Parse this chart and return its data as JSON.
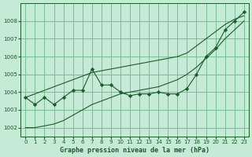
{
  "xlabel": "Graphe pression niveau de la mer (hPa)",
  "xlim": [
    -0.5,
    23.5
  ],
  "ylim": [
    1001.5,
    1009.0
  ],
  "yticks": [
    1002,
    1003,
    1004,
    1005,
    1006,
    1007,
    1008
  ],
  "xticks": [
    0,
    1,
    2,
    3,
    4,
    5,
    6,
    7,
    8,
    9,
    10,
    11,
    12,
    13,
    14,
    15,
    16,
    17,
    18,
    19,
    20,
    21,
    22,
    23
  ],
  "bg_color": "#c5ead5",
  "grid_color": "#6ab88a",
  "line_color": "#1a5c2a",
  "main_values": [
    1003.7,
    1003.3,
    1003.7,
    1003.3,
    1003.7,
    1004.1,
    1004.1,
    1005.3,
    1004.4,
    1004.4,
    1004.0,
    1003.8,
    1003.9,
    1003.9,
    1004.0,
    1003.9,
    1003.9,
    1004.2,
    1005.0,
    1006.0,
    1006.5,
    1007.5,
    1008.0,
    1008.5
  ],
  "upper_values": [
    1003.7,
    1003.9,
    1004.1,
    1004.3,
    1004.5,
    1004.7,
    1004.9,
    1005.1,
    1005.2,
    1005.3,
    1005.4,
    1005.5,
    1005.6,
    1005.7,
    1005.8,
    1005.9,
    1006.0,
    1006.2,
    1006.6,
    1007.0,
    1007.4,
    1007.8,
    1008.1,
    1008.3
  ],
  "lower_values": [
    1002.0,
    1002.0,
    1002.1,
    1002.2,
    1002.4,
    1002.7,
    1003.0,
    1003.3,
    1003.5,
    1003.7,
    1003.9,
    1004.0,
    1004.1,
    1004.2,
    1004.3,
    1004.5,
    1004.7,
    1005.0,
    1005.4,
    1005.9,
    1006.4,
    1007.0,
    1007.5,
    1008.0
  ],
  "tick_fontsize": 5,
  "xlabel_fontsize": 6
}
